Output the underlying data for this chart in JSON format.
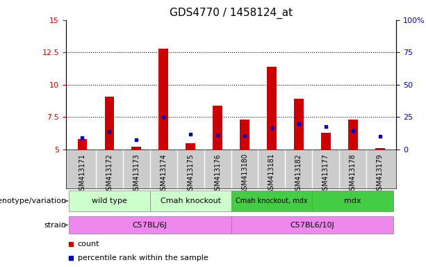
{
  "title": "GDS4770 / 1458124_at",
  "samples": [
    "GSM413171",
    "GSM413172",
    "GSM413173",
    "GSM413174",
    "GSM413175",
    "GSM413176",
    "GSM413180",
    "GSM413181",
    "GSM413182",
    "GSM413177",
    "GSM413178",
    "GSM413179"
  ],
  "count_values": [
    5.8,
    9.1,
    5.2,
    12.8,
    5.5,
    8.4,
    7.3,
    11.4,
    8.9,
    6.3,
    7.3,
    5.1
  ],
  "percentile_values": [
    5.9,
    6.4,
    5.75,
    7.5,
    6.2,
    6.15,
    6.05,
    6.65,
    7.0,
    6.8,
    6.45,
    6.0
  ],
  "ylim_left": [
    5,
    15
  ],
  "ylim_right": [
    0,
    100
  ],
  "yticks_left": [
    5,
    7.5,
    10,
    12.5,
    15
  ],
  "yticks_right": [
    0,
    25,
    50,
    75,
    100
  ],
  "ytick_labels_left": [
    "5",
    "7.5",
    "10",
    "12.5",
    "15"
  ],
  "ytick_labels_right": [
    "0",
    "25",
    "50",
    "75",
    "100%"
  ],
  "bar_color": "#cc0000",
  "dot_color": "#0000bb",
  "bar_bottom": 5.0,
  "bar_width": 0.35,
  "genotype_groups": [
    {
      "label": "wild type",
      "start": 0,
      "end": 3,
      "color": "#ccffcc"
    },
    {
      "label": "Cmah knockout",
      "start": 3,
      "end": 6,
      "color": "#ccffcc"
    },
    {
      "label": "Cmah knockout, mdx",
      "start": 6,
      "end": 9,
      "color": "#44cc44"
    },
    {
      "label": "mdx",
      "start": 9,
      "end": 12,
      "color": "#44cc44"
    }
  ],
  "strain_groups": [
    {
      "label": "C57BL/6J",
      "start": 0,
      "end": 6,
      "color": "#ee88ee"
    },
    {
      "label": "C57BL6/10J",
      "start": 6,
      "end": 12,
      "color": "#ee88ee"
    }
  ],
  "legend_items": [
    {
      "label": "count",
      "color": "#cc0000"
    },
    {
      "label": "percentile rank within the sample",
      "color": "#0000bb"
    }
  ],
  "bg_color": "#ffffff",
  "plot_bg_color": "#ffffff",
  "xtick_bg_color": "#cccccc",
  "label_fontsize": 7,
  "tick_fontsize": 8,
  "title_fontsize": 11,
  "annotation_fontsize": 8,
  "small_annotation_fontsize": 7,
  "genotype_label": "genotype/variation",
  "strain_label": "strain"
}
